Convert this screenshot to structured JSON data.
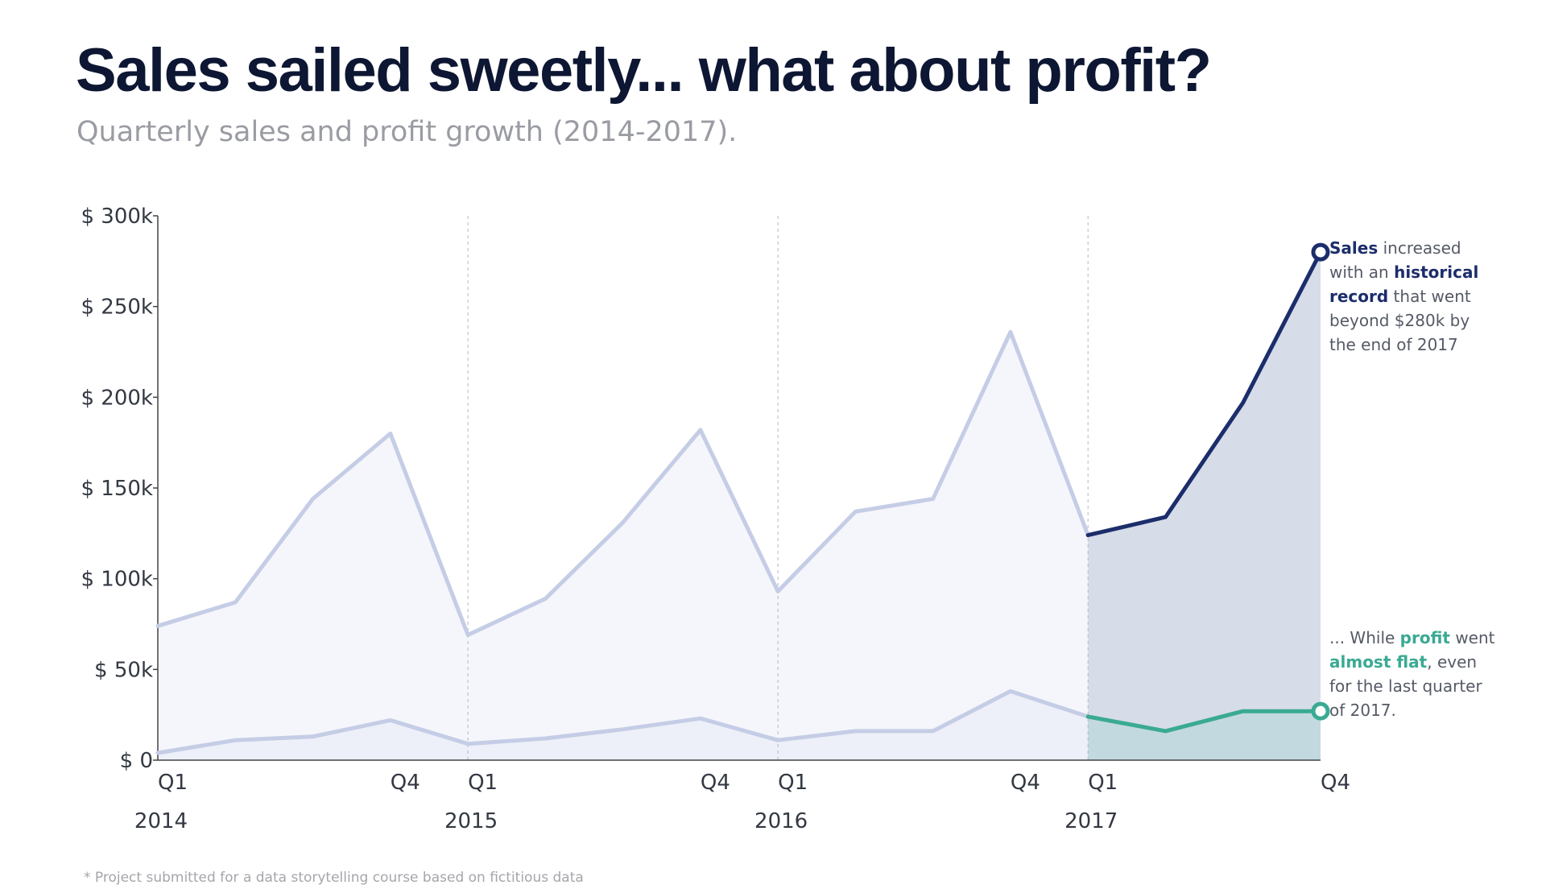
{
  "title": "Sales sailed sweetly... what about profit?",
  "subtitle": "Quarterly sales and profit growth (2014-2017).",
  "footnote": "* Project submitted for a data storytelling course based on fictitious data",
  "annotations": {
    "sales": {
      "t1": "Sales",
      "t2": " increased with an ",
      "t3": "historical record",
      "t4": " that went beyond $280k by the end of 2017"
    },
    "profit": {
      "t1": "... While ",
      "t2": "profit",
      "t3": " went ",
      "t4": "almost flat",
      "t5": ", even for the last quarter of 2017."
    }
  },
  "colors": {
    "sales_past": "#c5cde6",
    "sales_highlight": "#1c2d6b",
    "profit_highlight": "#3aaa93",
    "past_fill": "#f5f6fb",
    "highlight_fill": "#d6dce8",
    "profit_fill": "#c2d9df",
    "axis": "#444444",
    "grid": "#b5b8bf"
  },
  "chart_data": {
    "type": "line",
    "x": [
      "2014 Q1",
      "2014 Q2",
      "2014 Q3",
      "2014 Q4",
      "2015 Q1",
      "2015 Q2",
      "2015 Q3",
      "2015 Q4",
      "2016 Q1",
      "2016 Q2",
      "2016 Q3",
      "2016 Q4",
      "2017 Q1",
      "2017 Q2",
      "2017 Q3",
      "2017 Q4"
    ],
    "series": [
      {
        "name": "Sales",
        "values": [
          74000,
          87000,
          144000,
          180000,
          69000,
          89000,
          131000,
          182000,
          93000,
          137000,
          144000,
          236000,
          124000,
          134000,
          197000,
          280000
        ]
      },
      {
        "name": "Profit",
        "values": [
          4000,
          11000,
          13000,
          22000,
          9000,
          12000,
          17000,
          23000,
          11000,
          16000,
          16000,
          38000,
          24000,
          16000,
          27000,
          27000
        ]
      }
    ],
    "highlight_from_index": 12,
    "ylim": [
      0,
      300000
    ],
    "yticks": [
      0,
      50000,
      100000,
      150000,
      200000,
      250000,
      300000
    ],
    "ytick_labels": [
      "$ 0",
      "$ 50k",
      "$ 100k",
      "$ 150k",
      "$ 200k",
      "$ 250k",
      "$ 300k"
    ],
    "quarter_labels": [
      {
        "index": 0,
        "label": "Q1"
      },
      {
        "index": 3,
        "label": "Q4"
      },
      {
        "index": 4,
        "label": "Q1"
      },
      {
        "index": 7,
        "label": "Q4"
      },
      {
        "index": 8,
        "label": "Q1"
      },
      {
        "index": 11,
        "label": "Q4"
      },
      {
        "index": 12,
        "label": "Q1"
      },
      {
        "index": 15,
        "label": "Q4"
      }
    ],
    "year_labels": [
      {
        "index": 0,
        "label": "2014"
      },
      {
        "index": 4,
        "label": "2015"
      },
      {
        "index": 8,
        "label": "2016"
      },
      {
        "index": 12,
        "label": "2017"
      }
    ],
    "year_dividers": [
      4,
      8,
      12
    ],
    "grid": false
  }
}
